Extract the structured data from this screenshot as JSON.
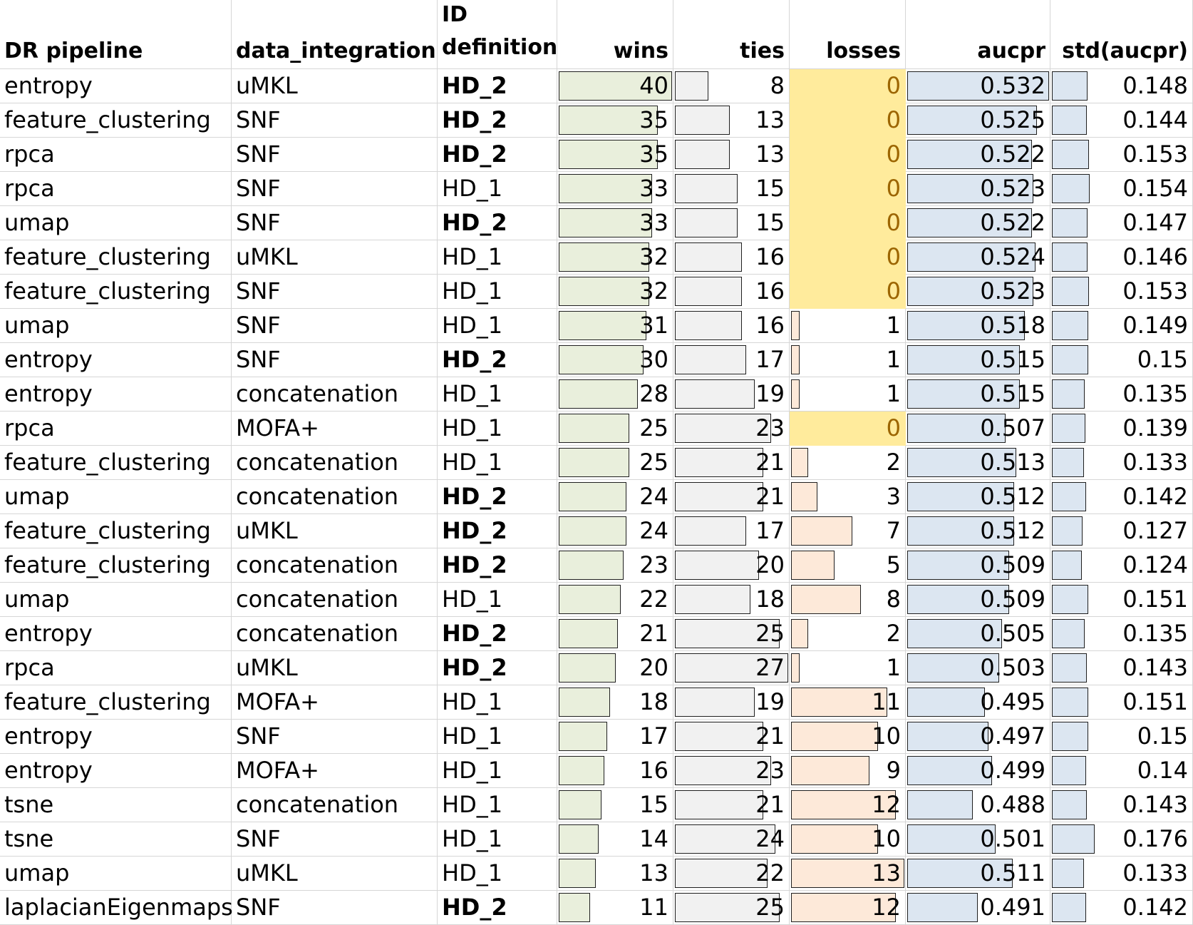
{
  "headers": {
    "dr_pipeline": "DR pipeline",
    "data_integration": "data_integration",
    "id_definition": "ID\ndefinition",
    "wins": "wins",
    "ties": "ties",
    "losses": "losses",
    "aucpr": "aucpr",
    "std_aucpr": "std(aucpr)"
  },
  "colors": {
    "wins_bar": "#e9efdc",
    "ties_bar": "#f1f1f1",
    "losses_bar": "#fde9d9",
    "aucpr_bar": "#dce6f1",
    "std_bar": "#dce6f1",
    "zero_highlight_fill": "#ffeb9c",
    "zero_highlight_text": "#9c6500",
    "gridline": "#d6d6d6"
  },
  "bar_scales": {
    "wins_max": 40,
    "ties_max": 27,
    "losses_max": 13,
    "aucpr_min": 0.45,
    "aucpr_max": 0.532,
    "std_max": 0.176
  },
  "rows": [
    {
      "dr": "entropy",
      "integration": "uMKL",
      "id": "HD_2",
      "wins": "40",
      "ties": "8",
      "losses": "0",
      "aucpr": "0.532",
      "std": "0.148"
    },
    {
      "dr": "feature_clustering",
      "integration": "SNF",
      "id": "HD_2",
      "wins": "35",
      "ties": "13",
      "losses": "0",
      "aucpr": "0.525",
      "std": "0.144"
    },
    {
      "dr": "rpca",
      "integration": "SNF",
      "id": "HD_2",
      "wins": "35",
      "ties": "13",
      "losses": "0",
      "aucpr": "0.522",
      "std": "0.153"
    },
    {
      "dr": "rpca",
      "integration": "SNF",
      "id": "HD_1",
      "wins": "33",
      "ties": "15",
      "losses": "0",
      "aucpr": "0.523",
      "std": "0.154"
    },
    {
      "dr": "umap",
      "integration": "SNF",
      "id": "HD_2",
      "wins": "33",
      "ties": "15",
      "losses": "0",
      "aucpr": "0.522",
      "std": "0.147"
    },
    {
      "dr": "feature_clustering",
      "integration": "uMKL",
      "id": "HD_1",
      "wins": "32",
      "ties": "16",
      "losses": "0",
      "aucpr": "0.524",
      "std": "0.146"
    },
    {
      "dr": "feature_clustering",
      "integration": "SNF",
      "id": "HD_1",
      "wins": "32",
      "ties": "16",
      "losses": "0",
      "aucpr": "0.523",
      "std": "0.153"
    },
    {
      "dr": "umap",
      "integration": "SNF",
      "id": "HD_1",
      "wins": "31",
      "ties": "16",
      "losses": "1",
      "aucpr": "0.518",
      "std": "0.149"
    },
    {
      "dr": "entropy",
      "integration": "SNF",
      "id": "HD_2",
      "wins": "30",
      "ties": "17",
      "losses": "1",
      "aucpr": "0.515",
      "std": "0.15"
    },
    {
      "dr": "entropy",
      "integration": "concatenation",
      "id": "HD_1",
      "wins": "28",
      "ties": "19",
      "losses": "1",
      "aucpr": "0.515",
      "std": "0.135"
    },
    {
      "dr": "rpca",
      "integration": "MOFA+",
      "id": "HD_1",
      "wins": "25",
      "ties": "23",
      "losses": "0",
      "aucpr": "0.507",
      "std": "0.139"
    },
    {
      "dr": "feature_clustering",
      "integration": "concatenation",
      "id": "HD_1",
      "wins": "25",
      "ties": "21",
      "losses": "2",
      "aucpr": "0.513",
      "std": "0.133"
    },
    {
      "dr": "umap",
      "integration": "concatenation",
      "id": "HD_2",
      "wins": "24",
      "ties": "21",
      "losses": "3",
      "aucpr": "0.512",
      "std": "0.142"
    },
    {
      "dr": "feature_clustering",
      "integration": "uMKL",
      "id": "HD_2",
      "wins": "24",
      "ties": "17",
      "losses": "7",
      "aucpr": "0.512",
      "std": "0.127"
    },
    {
      "dr": "feature_clustering",
      "integration": "concatenation",
      "id": "HD_2",
      "wins": "23",
      "ties": "20",
      "losses": "5",
      "aucpr": "0.509",
      "std": "0.124"
    },
    {
      "dr": "umap",
      "integration": "concatenation",
      "id": "HD_1",
      "wins": "22",
      "ties": "18",
      "losses": "8",
      "aucpr": "0.509",
      "std": "0.151"
    },
    {
      "dr": "entropy",
      "integration": "concatenation",
      "id": "HD_2",
      "wins": "21",
      "ties": "25",
      "losses": "2",
      "aucpr": "0.505",
      "std": "0.135"
    },
    {
      "dr": "rpca",
      "integration": "uMKL",
      "id": "HD_2",
      "wins": "20",
      "ties": "27",
      "losses": "1",
      "aucpr": "0.503",
      "std": "0.143"
    },
    {
      "dr": "feature_clustering",
      "integration": "MOFA+",
      "id": "HD_1",
      "wins": "18",
      "ties": "19",
      "losses": "11",
      "aucpr": "0.495",
      "std": "0.151"
    },
    {
      "dr": "entropy",
      "integration": "SNF",
      "id": "HD_1",
      "wins": "17",
      "ties": "21",
      "losses": "10",
      "aucpr": "0.497",
      "std": "0.15"
    },
    {
      "dr": "entropy",
      "integration": "MOFA+",
      "id": "HD_1",
      "wins": "16",
      "ties": "23",
      "losses": "9",
      "aucpr": "0.499",
      "std": "0.14"
    },
    {
      "dr": "tsne",
      "integration": "concatenation",
      "id": "HD_1",
      "wins": "15",
      "ties": "21",
      "losses": "12",
      "aucpr": "0.488",
      "std": "0.143"
    },
    {
      "dr": "tsne",
      "integration": "SNF",
      "id": "HD_1",
      "wins": "14",
      "ties": "24",
      "losses": "10",
      "aucpr": "0.501",
      "std": "0.176"
    },
    {
      "dr": "umap",
      "integration": "uMKL",
      "id": "HD_1",
      "wins": "13",
      "ties": "22",
      "losses": "13",
      "aucpr": "0.511",
      "std": "0.133"
    },
    {
      "dr": "laplacianEigenmaps",
      "integration": "SNF",
      "id": "HD_2",
      "wins": "11",
      "ties": "25",
      "losses": "12",
      "aucpr": "0.491",
      "std": "0.142"
    }
  ]
}
